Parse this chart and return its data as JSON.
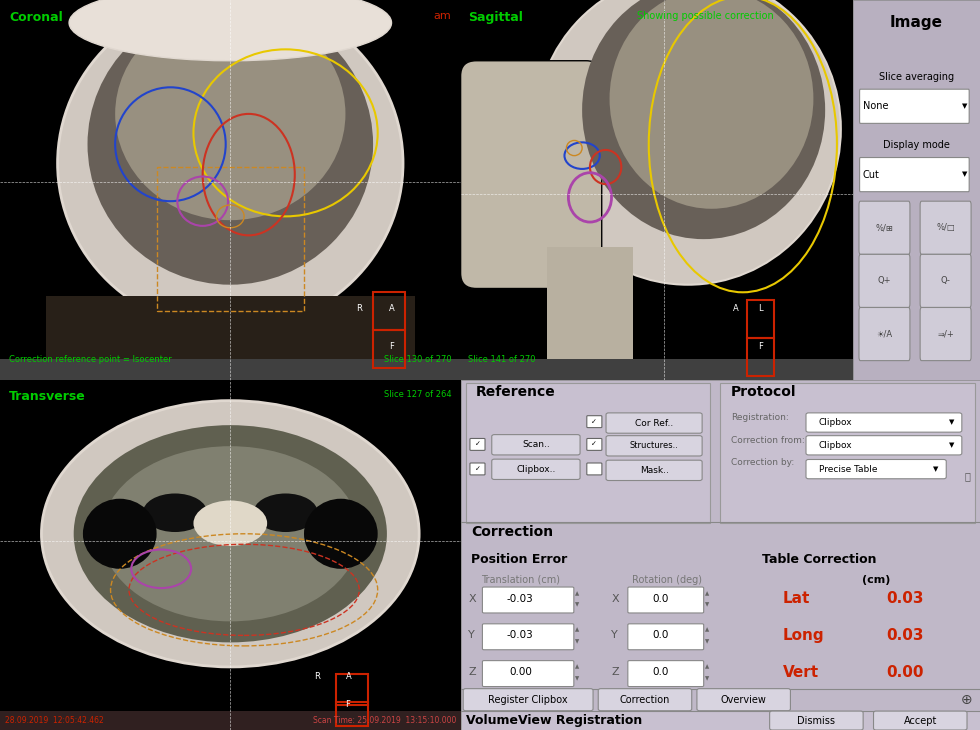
{
  "bg_color": "#000000",
  "panel_bg": "#b8b0c0",
  "coronal_label": "Coronal",
  "sagittal_label": "Sagittal",
  "transverse_label": "Transverse",
  "showing_correction": "Showing possible correction",
  "am_label": "am",
  "image_label": "Image",
  "slice_avg_label": "Slice averaging",
  "display_mode_label": "Display mode",
  "correction_ref": "Correction reference point = Isocenter",
  "slice_130": "Slice 130 of 270",
  "slice_141": "Slice 141 of 270",
  "slice_127": "Slice 127 of 264",
  "date_left": "28.09.2019  12:05:42.462",
  "date_right": "Scan Time: 25.09.2019  13:15:10.000",
  "reference_title": "Reference",
  "protocol_title": "Protocol",
  "correction_title": "Correction",
  "position_error": "Position Error",
  "table_correction": "Table Correction",
  "translation_cm": "Translation (cm)",
  "rotation_deg": "Rotation (deg)",
  "cm_label": "(cm)",
  "lat_label": "Lat",
  "long_label": "Long",
  "vert_label": "Vert",
  "lat_value": "0.03",
  "long_value": "0.03",
  "vert_value": "0.00",
  "x_trans": "-0.03",
  "y_trans": "-0.03",
  "z_trans": "0.00",
  "x_rot": "0.0",
  "y_rot": "0.0",
  "z_rot": "0.0",
  "registration_label": "Registration:",
  "correction_from_label": "Correction from:",
  "correction_by_label": "Correction by:",
  "clipbox_label": "Clipbox",
  "precise_table_label": "Precise Table",
  "register_btn": "Register Clipbox",
  "correction_btn": "Correction",
  "overview_btn": "Overview",
  "volumeview_label": "VolumeView Registration",
  "dismiss_btn": "Dismiss",
  "accept_btn": "Accept",
  "red_color": "#cc2200",
  "green_color": "#00cc00",
  "text_gray": "#888888",
  "none_label": "None",
  "cut_label": "Cut"
}
